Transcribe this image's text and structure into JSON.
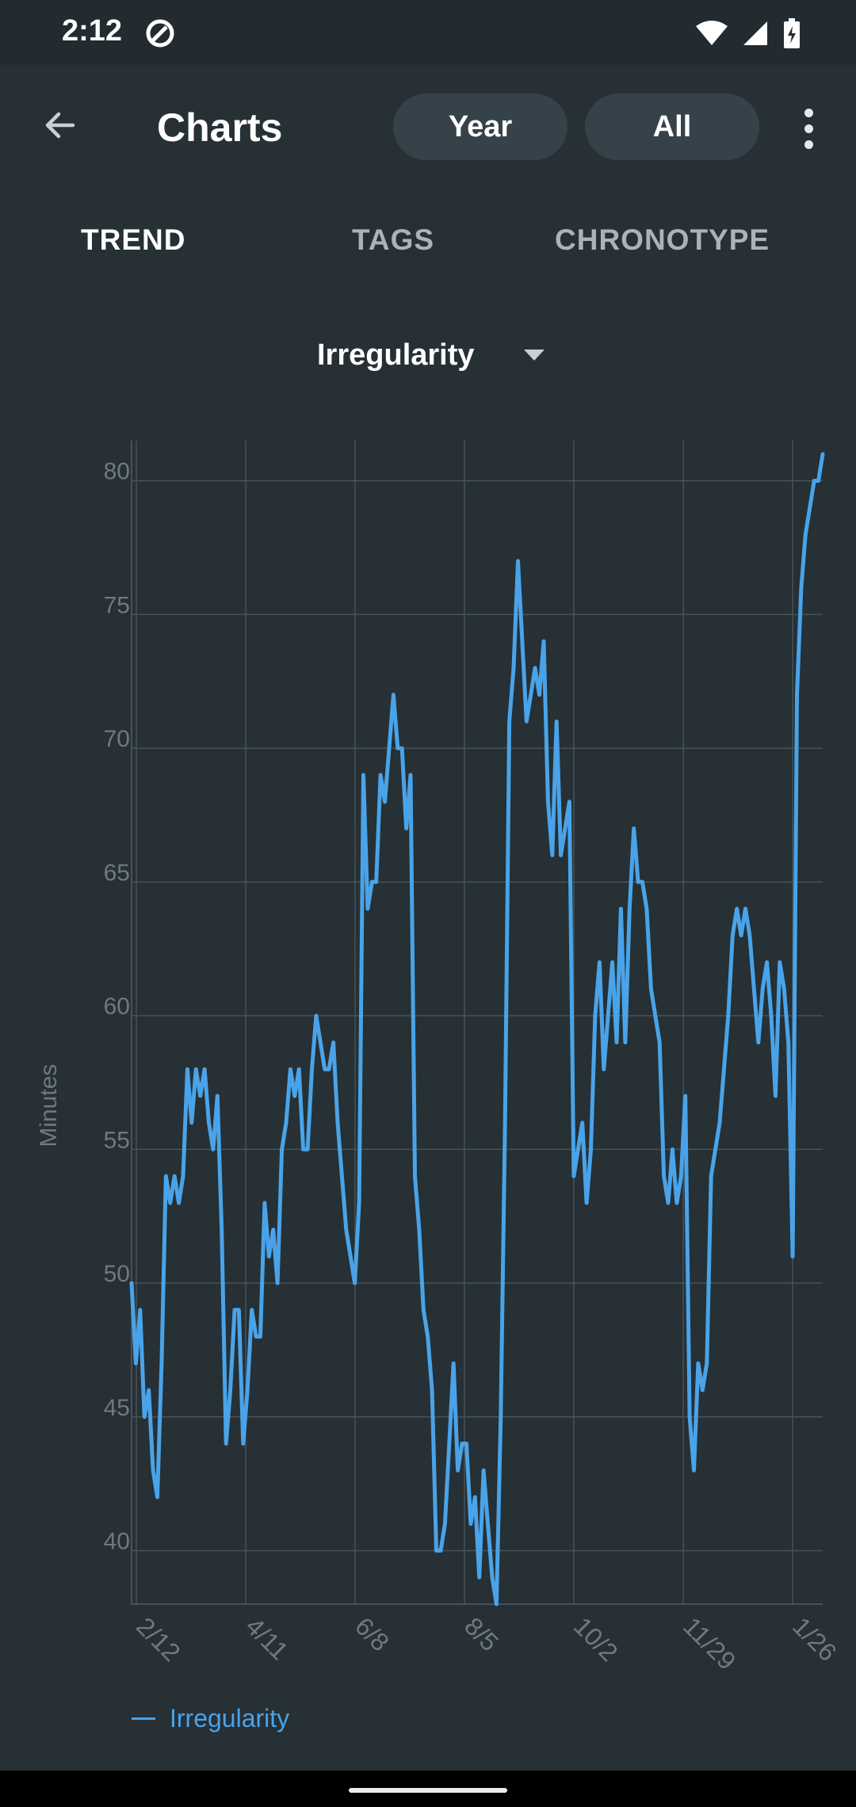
{
  "status_bar": {
    "time": "2:12"
  },
  "appbar": {
    "title": "Charts",
    "year_label": "Year",
    "all_label": "All"
  },
  "tabs": [
    {
      "label": "TREND",
      "selected": true
    },
    {
      "label": "TAGS",
      "selected": false
    },
    {
      "label": "CHRONOTYPE",
      "selected": false
    }
  ],
  "selector": {
    "label": "Irregularity"
  },
  "colors": {
    "background": "#263035",
    "line": "#4aa3e8",
    "grid": "#47525a",
    "tick": "#6f7a80"
  },
  "chart_data": {
    "type": "line",
    "ylabel": "Minutes",
    "ylim": [
      38,
      81.5
    ],
    "yticks": [
      40,
      45,
      50,
      55,
      60,
      65,
      70,
      75,
      80
    ],
    "xtick_labels": [
      "2/12",
      "4/11",
      "6/8",
      "8/5",
      "10/2",
      "11/29",
      "1/26"
    ],
    "legend": "bottom-left",
    "series": [
      {
        "name": "Irregularity",
        "values": [
          50,
          47,
          49,
          45,
          46,
          43,
          42,
          47,
          54,
          53,
          54,
          53,
          54,
          58,
          56,
          58,
          57,
          58,
          56,
          55,
          57,
          52,
          44,
          46,
          49,
          49,
          44,
          46,
          49,
          48,
          48,
          53,
          51,
          52,
          50,
          55,
          56,
          58,
          57,
          58,
          55,
          55,
          58,
          60,
          59,
          58,
          58,
          59,
          56,
          54,
          52,
          51,
          50,
          53,
          69,
          64,
          65,
          65,
          69,
          68,
          70,
          72,
          70,
          70,
          67,
          69,
          54,
          52,
          49,
          48,
          46,
          40,
          40,
          41,
          44,
          47,
          43,
          44,
          44,
          41,
          42,
          39,
          43,
          41,
          39,
          38,
          45,
          56,
          71,
          73,
          77,
          74,
          71,
          72,
          73,
          72,
          74,
          68,
          66,
          71,
          66,
          67,
          68,
          54,
          55,
          56,
          53,
          55,
          60,
          62,
          58,
          60,
          62,
          59,
          64,
          59,
          64,
          67,
          65,
          65,
          64,
          61,
          60,
          59,
          54,
          53,
          55,
          53,
          54,
          57,
          45,
          43,
          47,
          46,
          47,
          54,
          55,
          56,
          58,
          60,
          63,
          64,
          63,
          64,
          63,
          61,
          59,
          61,
          62,
          60,
          57,
          62,
          61,
          59,
          51,
          72,
          76,
          78,
          79,
          80,
          80,
          81
        ]
      }
    ]
  }
}
